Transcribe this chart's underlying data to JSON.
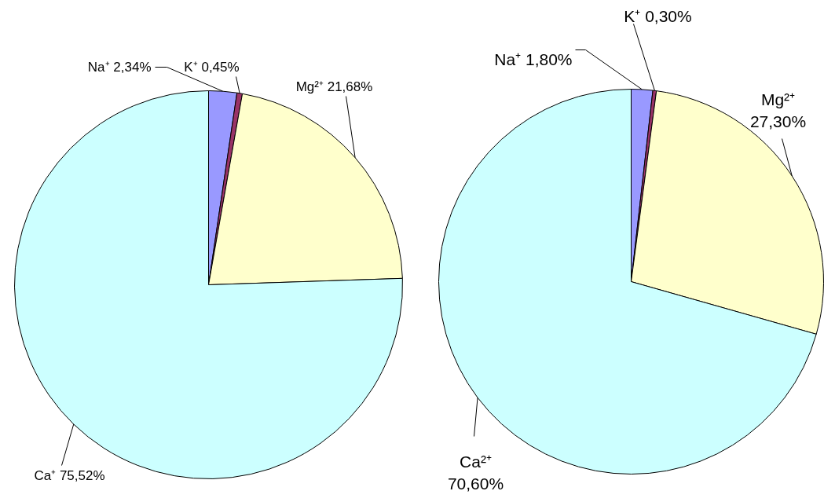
{
  "chart_data": [
    {
      "type": "pie",
      "categories": [
        "Na⁺",
        "K⁺",
        "Mg²⁺",
        "Ca⁺"
      ],
      "values": [
        2.34,
        0.45,
        21.68,
        75.52
      ],
      "colors": [
        "#9999ff",
        "#993366",
        "#ffffcc",
        "#ccffff"
      ],
      "value_labels": [
        "2,34%",
        "0,45%",
        "21,68%",
        "75,52%"
      ]
    },
    {
      "type": "pie",
      "categories": [
        "Na⁺",
        "K⁺",
        "Mg²⁺",
        "Ca²⁺"
      ],
      "values": [
        1.8,
        0.3,
        27.3,
        70.6
      ],
      "colors": [
        "#9999ff",
        "#993366",
        "#ffffcc",
        "#ccffff"
      ],
      "value_labels": [
        "1,80%",
        "0,30%",
        "27,30%",
        "70,60%"
      ]
    }
  ]
}
